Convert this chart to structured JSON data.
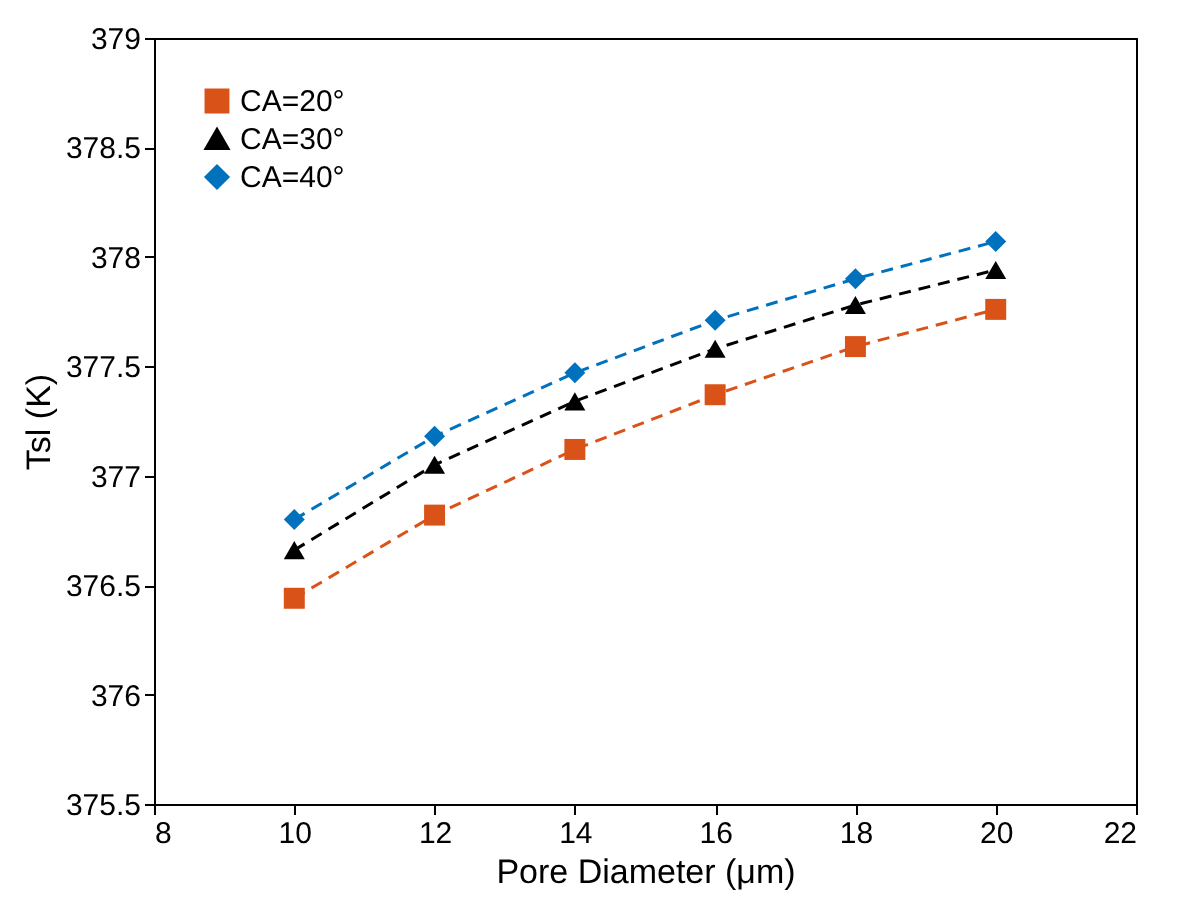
{
  "chart_data": {
    "type": "line",
    "xlabel": "Pore Diameter (μm)",
    "ylabel": "Tsl (K)",
    "x": [
      10,
      12,
      14,
      16,
      18,
      20
    ],
    "series": [
      {
        "name": "CA=20°",
        "color": "#d95319",
        "marker": "square",
        "values": [
          376.44,
          376.82,
          377.12,
          377.37,
          377.59,
          377.76
        ]
      },
      {
        "name": "CA=30°",
        "color": "#000000",
        "marker": "triangle",
        "values": [
          376.66,
          377.05,
          377.34,
          377.58,
          377.78,
          377.94
        ]
      },
      {
        "name": "CA=40°",
        "color": "#0072bd",
        "marker": "diamond",
        "values": [
          376.8,
          377.18,
          377.47,
          377.71,
          377.9,
          378.07
        ]
      }
    ],
    "xlim": [
      8,
      22
    ],
    "xticks": [
      8,
      10,
      12,
      14,
      16,
      18,
      20,
      22
    ],
    "ylim": [
      375.5,
      379
    ],
    "yticks": [
      375.5,
      376,
      376.5,
      377,
      377.5,
      378,
      378.5,
      379
    ],
    "grid": false,
    "legend": "top left",
    "line_style": "dashed"
  }
}
